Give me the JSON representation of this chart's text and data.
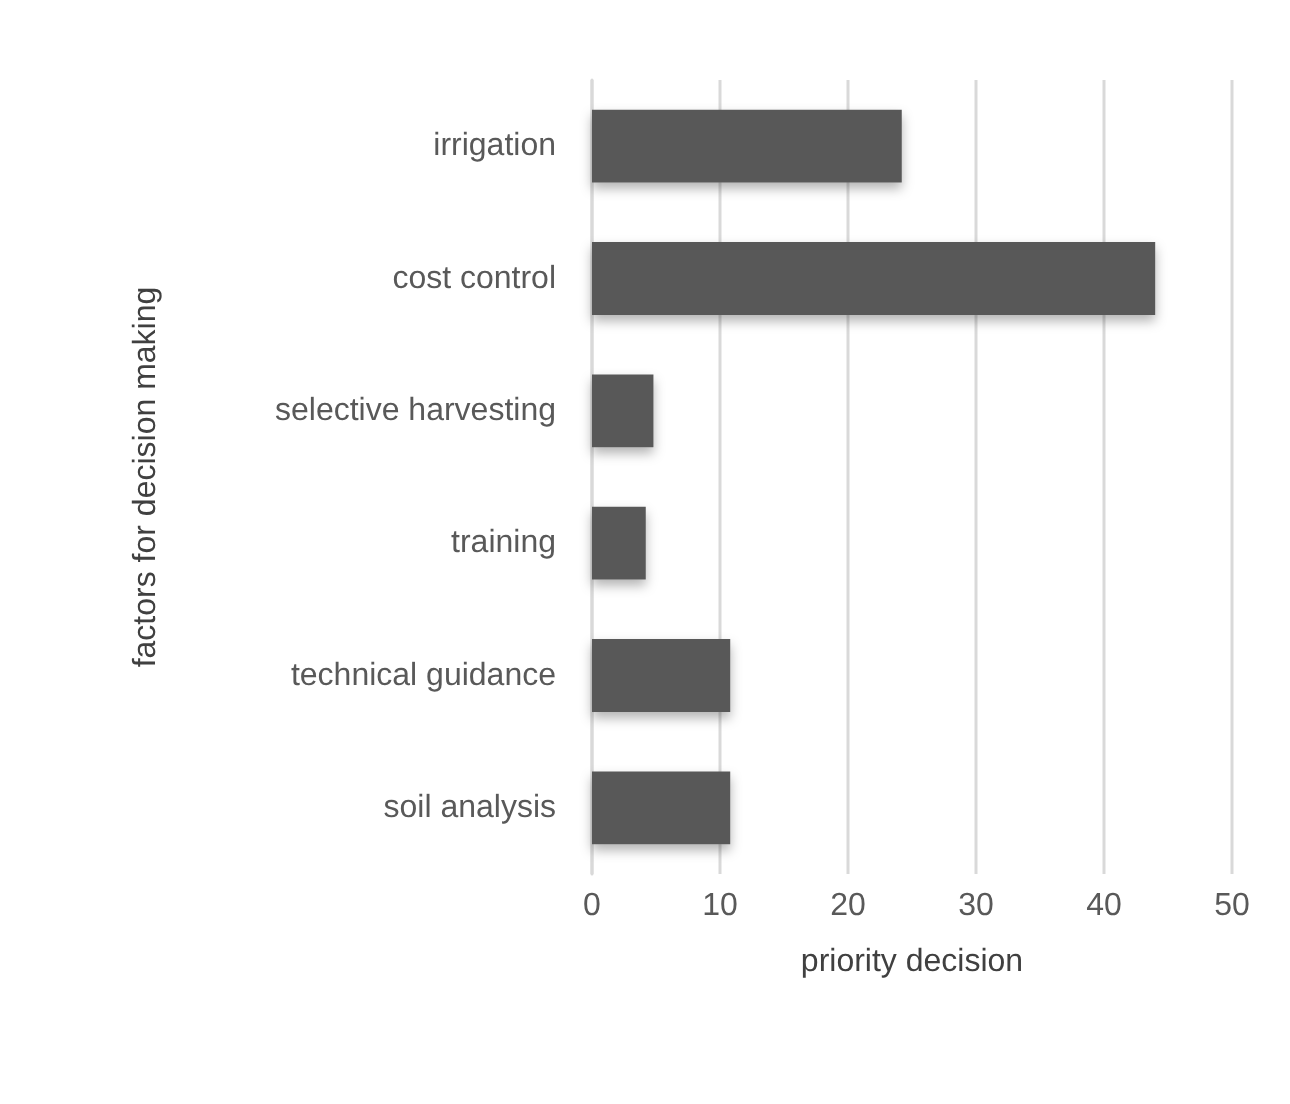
{
  "chart_data": {
    "type": "bar",
    "orientation": "horizontal",
    "xlabel": "priority decision",
    "ylabel": "factors for decision making",
    "categories": [
      "irrigation",
      "cost control",
      "selective harvesting",
      "training",
      "technical guidance",
      "soil analysis"
    ],
    "values": [
      24.2,
      44,
      4.8,
      4.2,
      10.8,
      10.8
    ],
    "color": "#595959",
    "xlim": [
      0,
      50
    ],
    "xticks": [
      0,
      10,
      20,
      30,
      40,
      50
    ],
    "grid": "x"
  }
}
